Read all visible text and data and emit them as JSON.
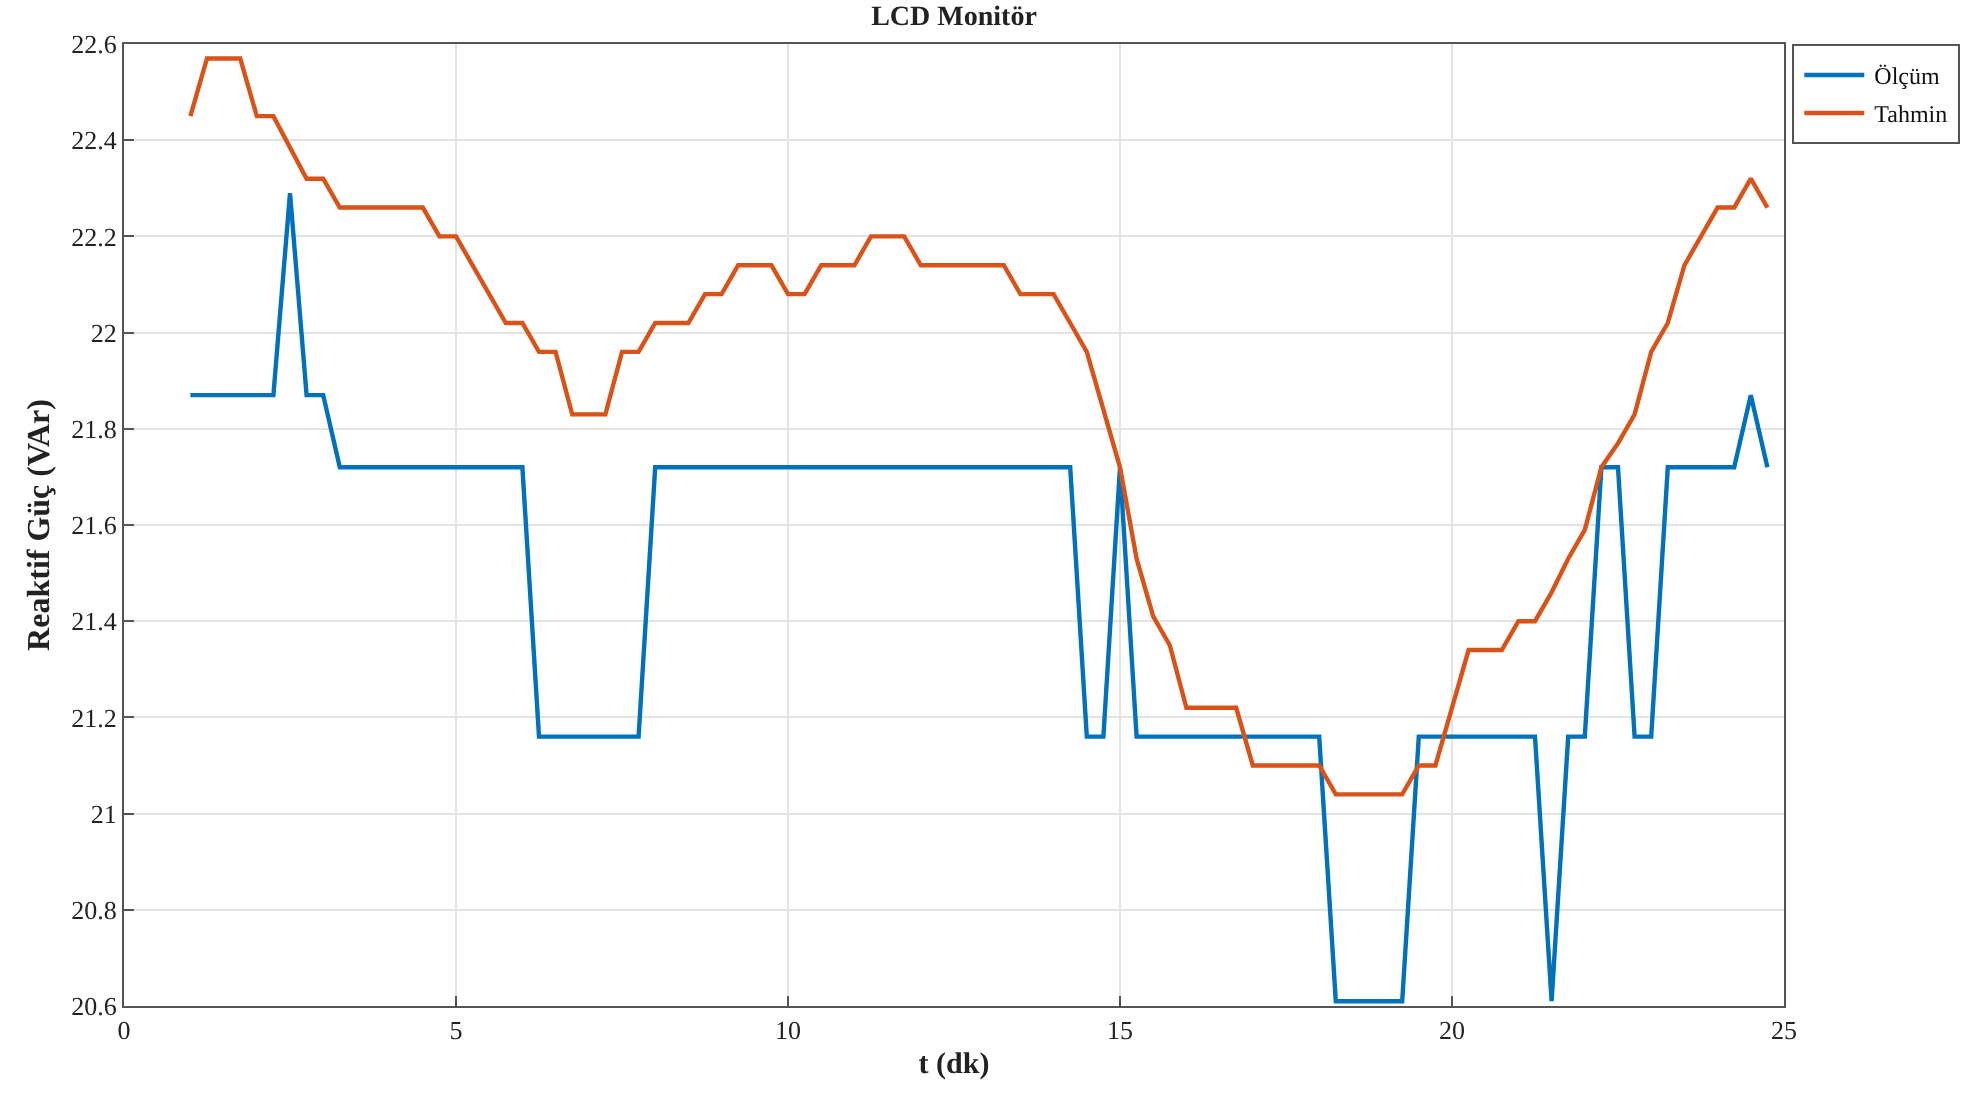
{
  "chart_data": {
    "type": "line",
    "title": "LCD Monitör",
    "xlabel": "t (dk)",
    "ylabel": "Reaktif Güç (VAr)",
    "xlim": [
      0,
      25
    ],
    "xticks": [
      0,
      5,
      10,
      15,
      20,
      25
    ],
    "ylim": [
      20.6,
      22.6
    ],
    "yticks": [
      20.6,
      20.8,
      21,
      21.2,
      21.4,
      21.6,
      21.8,
      22,
      22.2,
      22.4,
      22.6
    ],
    "grid": true,
    "legend": "top right",
    "marker": "none",
    "line_style": "solid",
    "series": [
      {
        "name": "Ölçüm",
        "color": "#0072bd",
        "x": [
          1,
          2.25,
          2.5,
          2.75,
          3,
          3.25,
          6,
          6.25,
          7.75,
          8,
          14.25,
          14.5,
          14.75,
          15,
          15.25,
          18,
          18.25,
          19.25,
          19.5,
          21.25,
          21.5,
          21.75,
          22,
          22.25,
          22.5,
          22.75,
          23,
          23.25,
          24.25,
          24.5,
          24.75
        ],
        "values": [
          21.87,
          21.87,
          22.29,
          21.87,
          21.87,
          21.72,
          21.72,
          21.16,
          21.16,
          21.72,
          21.72,
          21.16,
          21.16,
          21.72,
          21.16,
          21.16,
          20.61,
          20.61,
          21.16,
          21.16,
          20.61,
          21.16,
          21.16,
          21.72,
          21.72,
          21.16,
          21.16,
          21.72,
          21.72,
          21.87,
          21.72
        ]
      },
      {
        "name": "Tahmin",
        "color": "#d95319",
        "x": [
          1,
          1.25,
          1.75,
          2,
          2.25,
          2.75,
          3,
          3.25,
          4.5,
          4.75,
          5,
          5.75,
          6,
          6.25,
          6.5,
          6.75,
          7.25,
          7.5,
          7.75,
          8,
          8.5,
          8.75,
          9,
          9.25,
          9.75,
          10,
          10.25,
          10.5,
          11,
          11.25,
          11.75,
          12,
          13.25,
          13.5,
          14,
          14.25,
          14.5,
          14.75,
          15,
          15.25,
          15.5,
          15.75,
          16,
          16.75,
          17,
          18,
          18.25,
          19.25,
          19.5,
          19.75,
          20.25,
          20.75,
          21,
          21.25,
          21.5,
          21.75,
          22,
          22.25,
          22.5,
          22.75,
          23,
          23.25,
          23.5,
          23.75,
          24,
          24.25,
          24.5,
          24.75
        ],
        "values": [
          22.45,
          22.57,
          22.57,
          22.45,
          22.45,
          22.32,
          22.32,
          22.26,
          22.26,
          22.2,
          22.2,
          22.02,
          22.02,
          21.96,
          21.96,
          21.83,
          21.83,
          21.96,
          21.96,
          22.02,
          22.02,
          22.08,
          22.08,
          22.14,
          22.14,
          22.08,
          22.08,
          22.14,
          22.14,
          22.2,
          22.2,
          22.14,
          22.14,
          22.08,
          22.08,
          22.02,
          21.96,
          21.84,
          21.72,
          21.53,
          21.41,
          21.35,
          21.22,
          21.22,
          21.1,
          21.1,
          21.04,
          21.04,
          21.1,
          21.1,
          21.34,
          21.34,
          21.4,
          21.4,
          21.46,
          21.53,
          21.59,
          21.72,
          21.77,
          21.83,
          21.96,
          22.02,
          22.14,
          22.2,
          22.26,
          22.26,
          22.32,
          22.26
        ]
      }
    ]
  }
}
